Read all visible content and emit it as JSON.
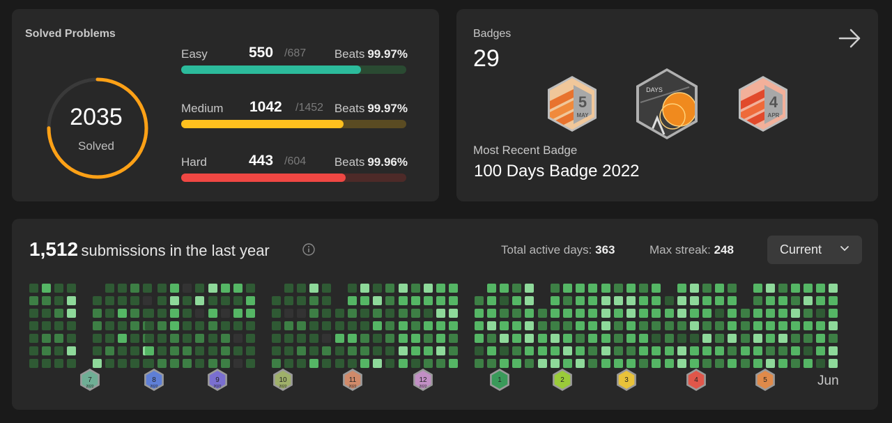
{
  "solved": {
    "title": "Solved Problems",
    "total": "2035",
    "total_label": "Solved",
    "ring_color": "#ffa116",
    "difficulties": [
      {
        "name": "Easy",
        "solved": "550",
        "total": "/687",
        "beats_label": "Beats",
        "beats": "99.97%",
        "fraction": 0.8,
        "color": "#2cbb9c",
        "track": "#2a4a32"
      },
      {
        "name": "Medium",
        "solved": "1042",
        "total": "/1452",
        "beats_label": "Beats",
        "beats": "99.97%",
        "fraction": 0.72,
        "color": "#ffc01e",
        "track": "#5a4b22"
      },
      {
        "name": "Hard",
        "solved": "443",
        "total": "/604",
        "beats_label": "Beats",
        "beats": "99.96%",
        "fraction": 0.73,
        "color": "#ef4743",
        "track": "#4d2a28"
      }
    ]
  },
  "badges": {
    "title": "Badges",
    "count": "29",
    "icons": [
      {
        "name": "may-badge-icon",
        "num": "5",
        "month": "MAY",
        "theme": "orange"
      },
      {
        "name": "days-badge-icon",
        "label": "DAYS",
        "theme": "days"
      },
      {
        "name": "apr-badge-icon",
        "num": "4",
        "month": "APR",
        "theme": "red"
      }
    ],
    "recent_label": "Most Recent Badge",
    "recent_name": "100 Days Badge 2022"
  },
  "submissions": {
    "count": "1,512",
    "label": "submissions in the last year",
    "active_days_label": "Total active days:",
    "active_days": "363",
    "max_streak_label": "Max streak:",
    "max_streak": "248",
    "period": "Current",
    "last_month_label": "Jun",
    "month_badges": [
      {
        "num": "7",
        "year": "2022",
        "color": "#6fae95"
      },
      {
        "num": "8",
        "year": "2022",
        "color": "#5f7fd6"
      },
      {
        "num": "9",
        "year": "2022",
        "color": "#7a6fd0"
      },
      {
        "num": "10",
        "year": "2022",
        "color": "#9fb06a"
      },
      {
        "num": "11",
        "year": "2022",
        "color": "#d08a6a"
      },
      {
        "num": "12",
        "year": "2022",
        "color": "#c18fc4"
      },
      {
        "num": "1",
        "color": "#3a9a5a"
      },
      {
        "num": "2",
        "color": "#9acb3a"
      },
      {
        "num": "3",
        "color": "#e8c23a"
      },
      {
        "num": "4",
        "color": "#e0564a"
      },
      {
        "num": "5",
        "color": "#e08a4a"
      }
    ],
    "heat_colors": {
      "none": "#333333",
      "level1": "#2f5a34",
      "level2": "#3d7f45",
      "level3": "#55b665",
      "level4": "#8ed99a"
    }
  }
}
